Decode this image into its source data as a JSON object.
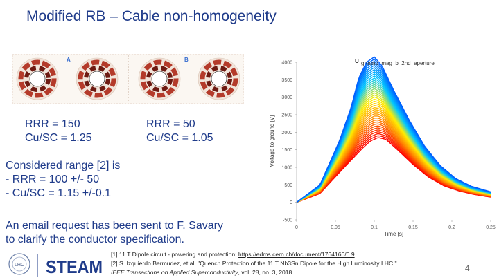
{
  "title": "Modified RB – Cable non-homogeneity",
  "magnet_labels": [
    "A",
    "B"
  ],
  "config_a": {
    "rrr": "RRR = 150",
    "cu_sc": "Cu/SC = 1.25"
  },
  "config_b": {
    "rrr": "RRR = 50",
    "cu_sc": "Cu/SC = 1.05"
  },
  "considered": {
    "heading": "Considered range [2] is",
    "items": [
      "-  RRR = 100 +/- 50",
      "-  Cu/SC = 1.15 +/-0.1"
    ]
  },
  "email": {
    "line1": "An email request has been sent to F. Savary",
    "line2": "to clarify the conductor specification."
  },
  "refs": {
    "r1_text": "[1] 11 T Dipole circuit - powering and protection: ",
    "r1_link": "https://edms.cern.ch/document/1764166/0.9",
    "r2_line1": "[2] S. Izquierdo Bermudez, et al: \"Quench Protection of the 11 T Nb3Sn Dipole for the High Luminosity LHC,\"",
    "r2_journal": "IEEE Transactions on Applied Superconductivity",
    "r2_rest": ", vol. 28, no. 3, 2018."
  },
  "logos": {
    "lhc": "LHC",
    "steam": "STEAM"
  },
  "page_number": "4",
  "chart_data": {
    "type": "line",
    "title": "U",
    "title_subscript": "ground_mag_b_2nd_aperture",
    "xlabel": "Time [s]",
    "ylabel": "Voltage to ground [V]",
    "xlim": [
      0,
      0.25
    ],
    "ylim": [
      -500,
      4000
    ],
    "xticks": [
      0,
      0.05,
      0.1,
      0.15,
      0.2,
      0.25
    ],
    "yticks": [
      -500,
      0,
      500,
      1000,
      1500,
      2000,
      2500,
      3000,
      3500,
      4000
    ],
    "xtick_labels": [
      "0",
      "0.05",
      "0.1",
      "0.15",
      "0.2",
      "0.25"
    ],
    "ytick_labels": [
      "-500",
      "0",
      "500",
      "1000",
      "1500",
      "2000",
      "2500",
      "3000",
      "3500",
      "4000"
    ],
    "series_count": 40,
    "colormap": [
      "#ff0000",
      "#ff8800",
      "#ffee00",
      "#00c8ff",
      "#0060ff"
    ],
    "envelope": {
      "lower": [
        [
          0,
          0
        ],
        [
          0.03,
          250
        ],
        [
          0.055,
          850
        ],
        [
          0.07,
          1200
        ],
        [
          0.085,
          1550
        ],
        [
          0.095,
          1750
        ],
        [
          0.105,
          1850
        ],
        [
          0.115,
          1800
        ],
        [
          0.13,
          1500
        ],
        [
          0.15,
          1080
        ],
        [
          0.17,
          720
        ],
        [
          0.19,
          470
        ],
        [
          0.21,
          320
        ],
        [
          0.23,
          220
        ],
        [
          0.25,
          150
        ]
      ],
      "upper": [
        [
          0,
          0
        ],
        [
          0.03,
          500
        ],
        [
          0.055,
          1750
        ],
        [
          0.07,
          2700
        ],
        [
          0.08,
          3550
        ],
        [
          0.09,
          4000
        ],
        [
          0.1,
          4150
        ],
        [
          0.11,
          3900
        ],
        [
          0.125,
          3200
        ],
        [
          0.145,
          2350
        ],
        [
          0.165,
          1600
        ],
        [
          0.185,
          1050
        ],
        [
          0.205,
          680
        ],
        [
          0.225,
          460
        ],
        [
          0.25,
          300
        ]
      ]
    }
  }
}
